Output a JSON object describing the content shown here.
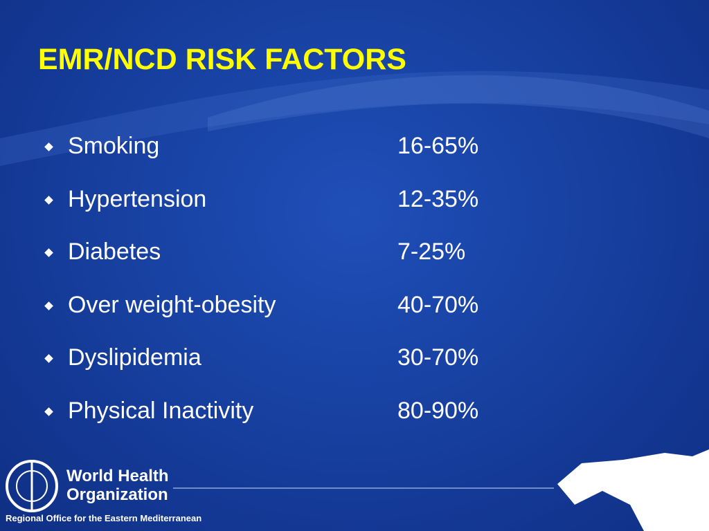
{
  "title": "EMR/NCD RISK FACTORS",
  "items": [
    {
      "label": "Smoking",
      "value": "16-65%"
    },
    {
      "label": "Hypertension",
      "value": "12-35%"
    },
    {
      "label": "Diabetes",
      "value": "7-25%"
    },
    {
      "label": "Over weight-obesity",
      "value": "40-70%"
    },
    {
      "label": "Dyslipidemia",
      "value": "30-70%"
    },
    {
      "label": "Physical Inactivity",
      "value": "80-90%"
    }
  ],
  "logo": {
    "name_line1": "World Health",
    "name_line2": "Organization",
    "subtitle": "Regional Office for the Eastern Mediterranean"
  }
}
